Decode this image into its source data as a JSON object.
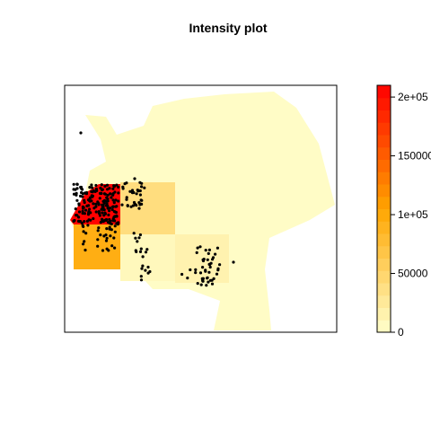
{
  "chart_data": {
    "type": "heatmap",
    "title": "Intensity plot",
    "xlabel": "",
    "ylabel": "",
    "colorbar": {
      "ticks": [
        "0",
        "50000",
        "1e+05",
        "150000",
        "2e+05"
      ],
      "tick_values": [
        0,
        50000,
        100000,
        150000,
        200000
      ],
      "range": [
        0,
        210000
      ],
      "palette": "heat (white-yellow to red)",
      "placement": "right"
    },
    "quadrat_intensity": [
      {
        "cell": "west-upper",
        "value": 210000
      },
      {
        "cell": "west-lower",
        "value": 95000
      },
      {
        "cell": "center-upper",
        "value": 40000
      },
      {
        "cell": "center-lower",
        "value": 8000
      },
      {
        "cell": "east-lower",
        "value": 15000
      },
      {
        "cell": "remainder",
        "value": 3000
      }
    ],
    "points_description": "event locations overlaid as black dots"
  },
  "colors": {
    "background": "#FFFFFF",
    "low": "#FFFFCC",
    "high": "#FF0000",
    "points": "#000000"
  }
}
